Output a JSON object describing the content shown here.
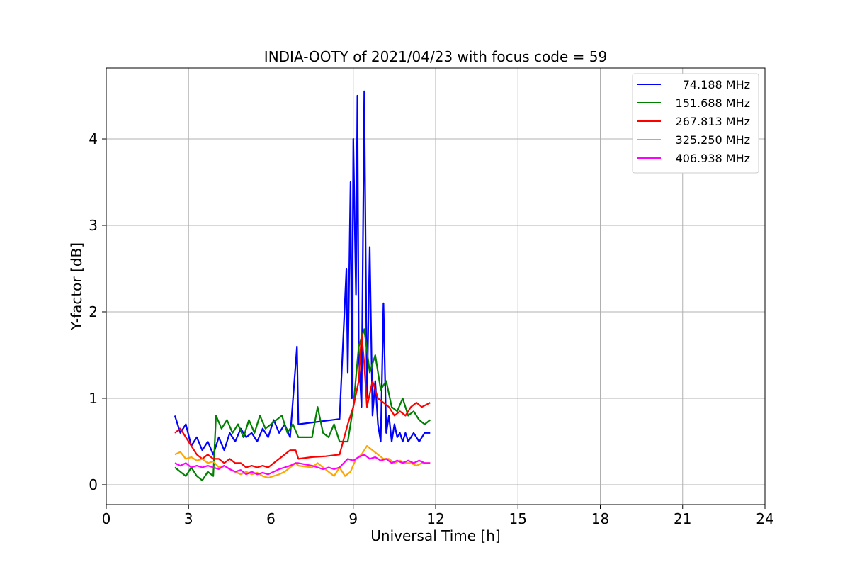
{
  "chart_data": {
    "type": "line",
    "title": "INDIA-OOTY of 2021/04/23 with focus code = 59",
    "xlabel": "Universal Time [h]",
    "ylabel": "Y-factor [dB]",
    "xlim": [
      0,
      24
    ],
    "ylim": [
      -0.23,
      4.82
    ],
    "xticks": [
      0,
      3,
      6,
      9,
      12,
      15,
      18,
      21,
      24
    ],
    "yticks": [
      0,
      1,
      2,
      3,
      4
    ],
    "grid": true,
    "legend_position": "top-right",
    "series": [
      {
        "name": "74.188 MHz",
        "color": "#0000ff",
        "x": [
          2.5,
          2.7,
          2.9,
          3.1,
          3.3,
          3.5,
          3.7,
          3.9,
          4.1,
          4.3,
          4.5,
          4.7,
          4.9,
          5.1,
          5.3,
          5.5,
          5.7,
          5.9,
          6.1,
          6.3,
          6.5,
          6.7,
          6.95,
          7.0,
          7.5,
          8.0,
          8.5,
          8.75,
          8.8,
          8.9,
          8.95,
          9.0,
          9.1,
          9.15,
          9.2,
          9.3,
          9.4,
          9.5,
          9.6,
          9.7,
          9.8,
          9.9,
          10.0,
          10.1,
          10.2,
          10.3,
          10.4,
          10.5,
          10.6,
          10.7,
          10.8,
          10.9,
          11.0,
          11.1,
          11.2,
          11.4,
          11.6,
          11.8
        ],
        "y": [
          0.8,
          0.6,
          0.7,
          0.45,
          0.55,
          0.4,
          0.5,
          0.35,
          0.55,
          0.4,
          0.6,
          0.5,
          0.65,
          0.55,
          0.6,
          0.5,
          0.65,
          0.55,
          0.75,
          0.6,
          0.7,
          0.55,
          1.6,
          0.7,
          0.72,
          0.74,
          0.76,
          2.5,
          1.3,
          3.5,
          1.0,
          4.0,
          2.2,
          4.5,
          1.5,
          0.9,
          4.55,
          1.0,
          2.75,
          0.8,
          1.2,
          0.7,
          0.5,
          2.1,
          0.6,
          0.8,
          0.5,
          0.7,
          0.55,
          0.6,
          0.5,
          0.6,
          0.5,
          0.55,
          0.6,
          0.5,
          0.6,
          0.6
        ]
      },
      {
        "name": "151.688 MHz",
        "color": "#008000",
        "x": [
          2.5,
          2.7,
          2.9,
          3.1,
          3.3,
          3.5,
          3.7,
          3.9,
          4.0,
          4.2,
          4.4,
          4.6,
          4.8,
          5.0,
          5.2,
          5.4,
          5.6,
          5.8,
          6.0,
          6.2,
          6.4,
          6.6,
          6.8,
          7.0,
          7.5,
          7.7,
          7.9,
          8.1,
          8.3,
          8.5,
          8.8,
          9.0,
          9.2,
          9.4,
          9.6,
          9.8,
          10.0,
          10.2,
          10.4,
          10.6,
          10.8,
          11.0,
          11.2,
          11.4,
          11.6,
          11.8
        ],
        "y": [
          0.2,
          0.15,
          0.1,
          0.2,
          0.1,
          0.05,
          0.15,
          0.1,
          0.8,
          0.65,
          0.75,
          0.6,
          0.7,
          0.55,
          0.75,
          0.6,
          0.8,
          0.65,
          0.7,
          0.75,
          0.8,
          0.6,
          0.7,
          0.55,
          0.55,
          0.9,
          0.6,
          0.55,
          0.7,
          0.5,
          0.5,
          0.9,
          1.6,
          1.8,
          1.3,
          1.5,
          1.1,
          1.2,
          0.9,
          0.85,
          1.0,
          0.8,
          0.85,
          0.75,
          0.7,
          0.75
        ]
      },
      {
        "name": "267.813 MHz",
        "color": "#ff0000",
        "x": [
          2.5,
          2.7,
          2.9,
          3.1,
          3.3,
          3.5,
          3.7,
          3.9,
          4.1,
          4.3,
          4.5,
          4.7,
          4.9,
          5.1,
          5.3,
          5.5,
          5.7,
          5.9,
          6.1,
          6.3,
          6.5,
          6.7,
          6.9,
          7.0,
          7.5,
          8.0,
          8.5,
          8.8,
          9.0,
          9.2,
          9.3,
          9.4,
          9.5,
          9.7,
          9.9,
          10.1,
          10.3,
          10.5,
          10.7,
          10.9,
          11.1,
          11.3,
          11.5,
          11.8
        ],
        "y": [
          0.6,
          0.65,
          0.55,
          0.45,
          0.35,
          0.3,
          0.35,
          0.3,
          0.3,
          0.25,
          0.3,
          0.25,
          0.25,
          0.2,
          0.22,
          0.2,
          0.22,
          0.2,
          0.25,
          0.3,
          0.35,
          0.4,
          0.4,
          0.3,
          0.32,
          0.33,
          0.35,
          0.7,
          0.9,
          1.2,
          1.75,
          1.4,
          0.9,
          1.2,
          1.0,
          0.95,
          0.9,
          0.8,
          0.85,
          0.8,
          0.9,
          0.95,
          0.9,
          0.95
        ]
      },
      {
        "name": "325.250 MHz",
        "color": "#ffa500",
        "x": [
          2.5,
          2.7,
          2.9,
          3.1,
          3.3,
          3.5,
          3.7,
          3.9,
          4.1,
          4.3,
          4.5,
          4.7,
          4.9,
          5.1,
          5.3,
          5.5,
          5.7,
          5.9,
          6.1,
          6.3,
          6.5,
          6.7,
          6.9,
          7.0,
          7.5,
          7.7,
          7.9,
          8.1,
          8.3,
          8.5,
          8.7,
          8.9,
          9.1,
          9.3,
          9.5,
          9.7,
          9.9,
          10.1,
          10.3,
          10.5,
          10.7,
          10.9,
          11.1,
          11.3,
          11.5,
          11.8
        ],
        "y": [
          0.35,
          0.38,
          0.3,
          0.32,
          0.28,
          0.3,
          0.25,
          0.27,
          0.2,
          0.22,
          0.18,
          0.15,
          0.12,
          0.15,
          0.12,
          0.14,
          0.1,
          0.08,
          0.1,
          0.12,
          0.15,
          0.2,
          0.25,
          0.22,
          0.2,
          0.25,
          0.2,
          0.15,
          0.1,
          0.2,
          0.1,
          0.15,
          0.3,
          0.35,
          0.45,
          0.4,
          0.35,
          0.3,
          0.3,
          0.25,
          0.28,
          0.25,
          0.25,
          0.22,
          0.25,
          0.25
        ]
      },
      {
        "name": "406.938 MHz",
        "color": "#ff00ff",
        "x": [
          2.5,
          2.7,
          2.9,
          3.1,
          3.3,
          3.5,
          3.7,
          3.9,
          4.1,
          4.3,
          4.5,
          4.7,
          4.9,
          5.1,
          5.3,
          5.5,
          5.7,
          5.9,
          6.1,
          6.3,
          6.5,
          6.7,
          6.9,
          7.0,
          7.5,
          7.7,
          7.9,
          8.1,
          8.3,
          8.5,
          8.8,
          9.0,
          9.2,
          9.4,
          9.6,
          9.8,
          10.0,
          10.2,
          10.4,
          10.6,
          10.8,
          11.0,
          11.2,
          11.4,
          11.6,
          11.8
        ],
        "y": [
          0.25,
          0.22,
          0.25,
          0.2,
          0.22,
          0.2,
          0.22,
          0.2,
          0.18,
          0.22,
          0.18,
          0.15,
          0.17,
          0.12,
          0.15,
          0.12,
          0.14,
          0.12,
          0.15,
          0.18,
          0.2,
          0.22,
          0.25,
          0.25,
          0.22,
          0.2,
          0.18,
          0.2,
          0.18,
          0.2,
          0.3,
          0.28,
          0.32,
          0.35,
          0.3,
          0.32,
          0.28,
          0.3,
          0.25,
          0.28,
          0.25,
          0.28,
          0.25,
          0.28,
          0.25,
          0.25
        ]
      }
    ]
  }
}
